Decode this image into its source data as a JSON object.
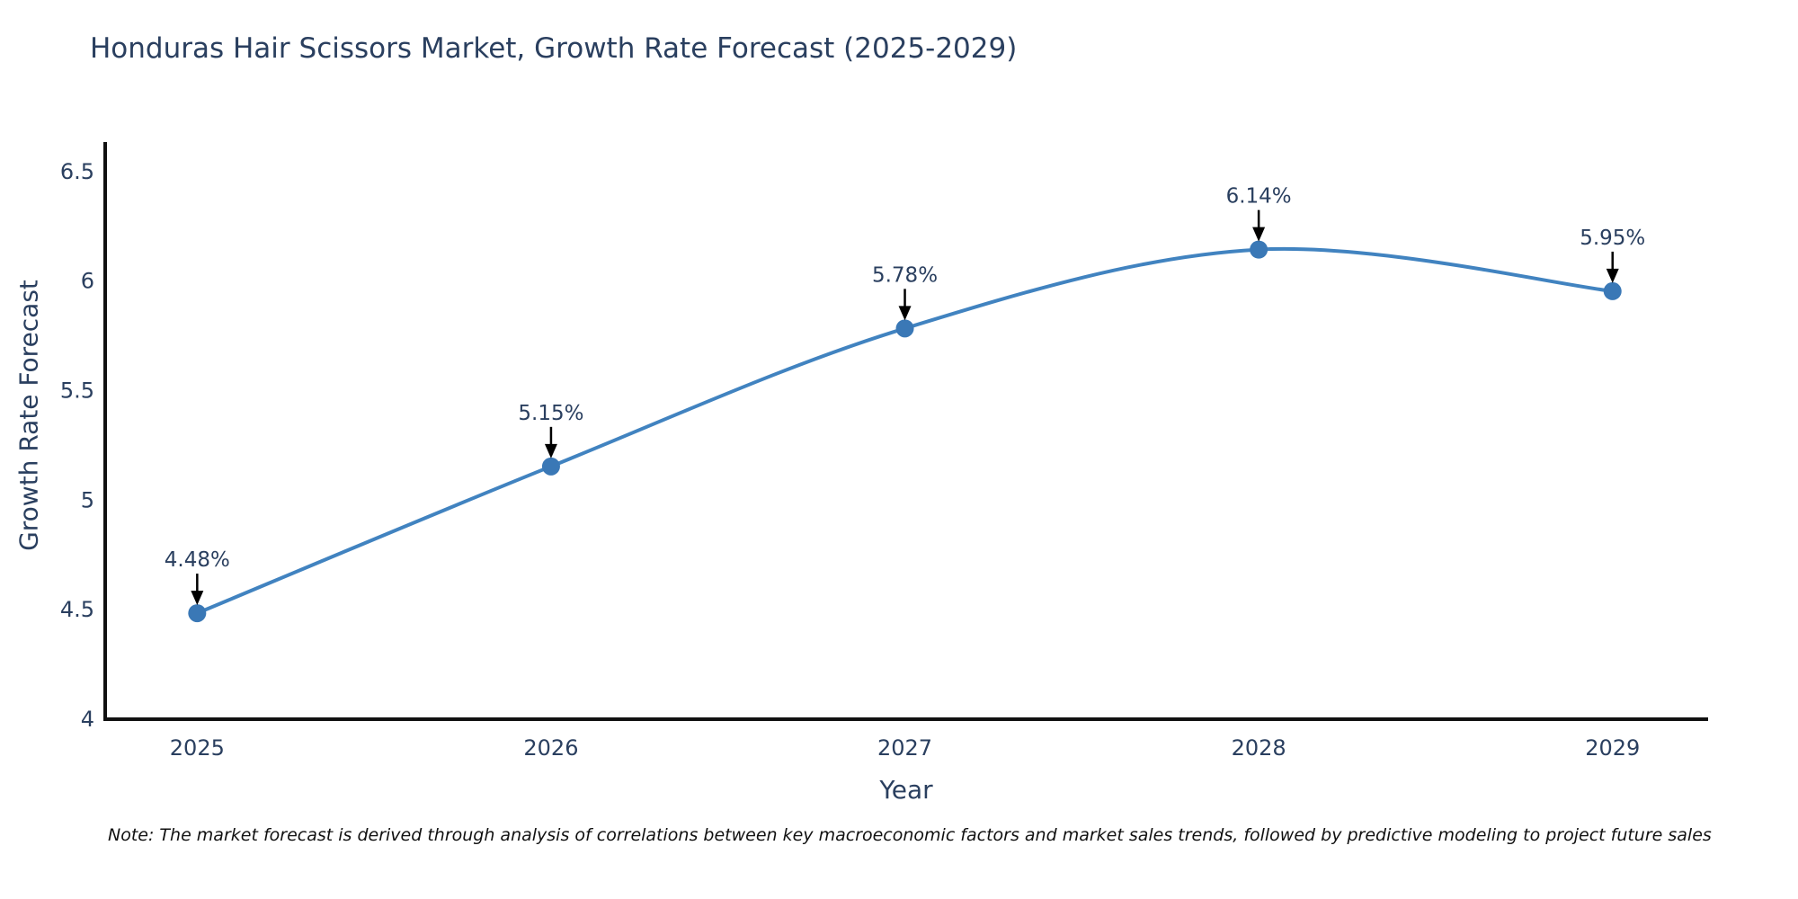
{
  "chart_data": {
    "type": "line",
    "title": "Honduras Hair Scissors Market, Growth Rate Forecast (2025-2029)",
    "xlabel": "Year",
    "ylabel": "Growth Rate Forecast",
    "categories": [
      2025,
      2026,
      2027,
      2028,
      2029
    ],
    "series": [
      {
        "name": "Growth Rate Forecast",
        "values": [
          4.48,
          5.15,
          5.78,
          6.14,
          5.95
        ],
        "point_labels": [
          "4.48%",
          "5.15%",
          "5.78%",
          "6.14%",
          "5.95%"
        ]
      }
    ],
    "xticks": {
      "values": [
        2025,
        2026,
        2027,
        2028,
        2029
      ],
      "labels": [
        "2025",
        "2026",
        "2027",
        "2028",
        "2029"
      ]
    },
    "yticks": {
      "values": [
        4,
        4.5,
        5,
        5.5,
        6,
        6.5
      ],
      "labels": [
        "4",
        "4.5",
        "5",
        "5.5",
        "6",
        "6.5"
      ]
    },
    "xlim": [
      2024.74,
      2029.27
    ],
    "ylim": [
      3.996,
      6.631
    ],
    "grid": false,
    "legend_position": "none",
    "line_shape": "spline",
    "colors": {
      "line": "#4183c0",
      "marker": "#3a78b6",
      "axis": "#111111",
      "tick_text": "#2a3f5f",
      "annotation_text": "#2a3f5f",
      "arrow": "#000000",
      "title_text": "#2a3f5f",
      "note_text": "#111111",
      "background": "#ffffff"
    },
    "note": "Note: The market forecast is derived through analysis of correlations between key macroeconomic factors and market sales trends, followed by predictive modeling to project future sales"
  }
}
